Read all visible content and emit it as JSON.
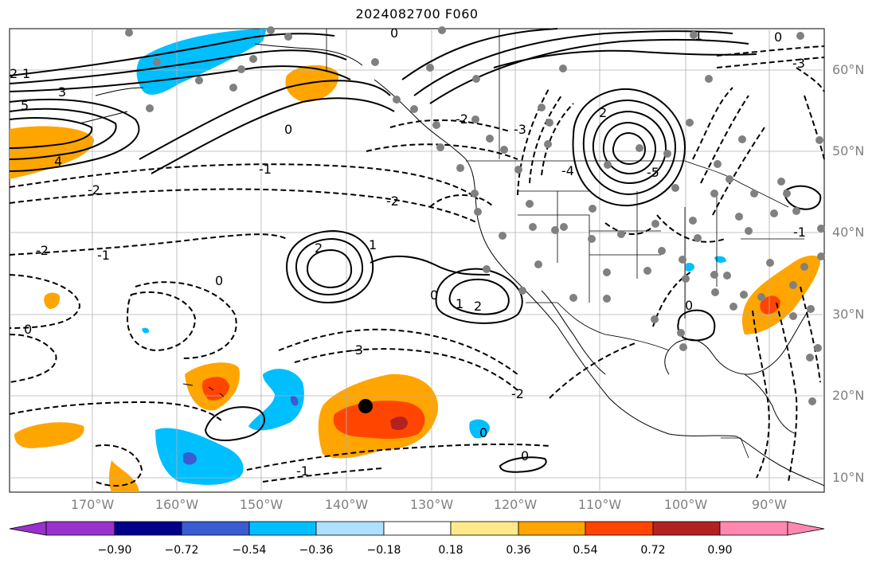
{
  "title": "2024082700 F060",
  "lat_labels": [
    "60°N",
    "50°N",
    "40°N",
    "30°N",
    "20°N",
    "10°N"
  ],
  "lon_labels": [
    "170°W",
    "160°W",
    "150°W",
    "140°W",
    "130°W",
    "120°W",
    "110°W",
    "100°W",
    "90°W"
  ],
  "colorbar": {
    "ticks": [
      "−0.90",
      "−0.72",
      "−0.54",
      "−0.36",
      "−0.18",
      "0.18",
      "0.36",
      "0.54",
      "0.72",
      "0.90"
    ],
    "colors": [
      "#9932cc",
      "#00008b",
      "#3a5bd1",
      "#00bfff",
      "#b0e0ff",
      "#ffffff",
      "#ffe98a",
      "#ffa500",
      "#ff4500",
      "#b22222",
      "#ff88b0"
    ]
  },
  "contour_labels": [
    "0",
    "1",
    "2",
    "3",
    "5",
    "4",
    "-1",
    "-2",
    "-3",
    "-4",
    "-5",
    "2",
    "1",
    "0",
    "-2",
    "-3",
    "0",
    "0",
    "0",
    "-2",
    "-2",
    "1",
    "-1",
    "0",
    "1",
    "-1",
    "0",
    "-3",
    "-1",
    "-2",
    "2",
    "0",
    "0",
    "2"
  ],
  "colors": {
    "land_marker": "#808080",
    "storm_center": "#000000"
  }
}
